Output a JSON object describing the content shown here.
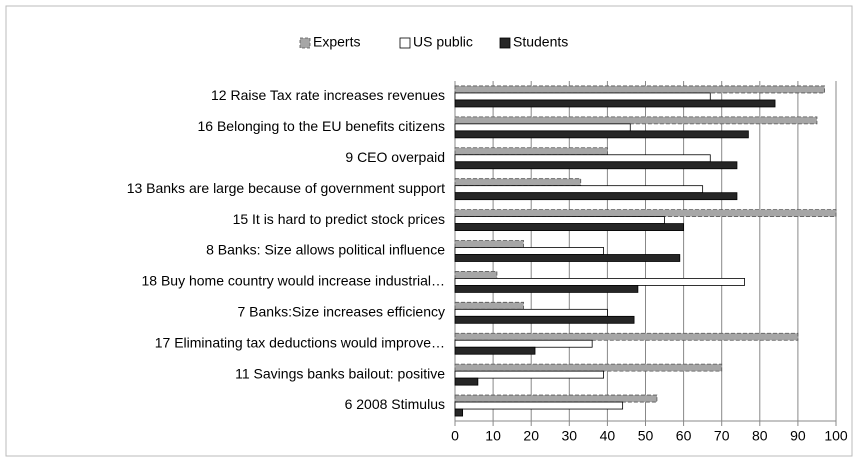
{
  "chart_data": {
    "type": "hbar",
    "categories": [
      "12 Raise Tax rate increases revenues",
      "16 Belonging to the EU benefits citizens",
      "9 CEO overpaid",
      "13 Banks are large because of government support",
      "15 It is hard to predict stock prices",
      "8 Banks: Size allows political influence",
      "18 Buy home country would increase industrial…",
      "7 Banks:Size increases efficiency",
      "17 Eliminating tax deductions would improve…",
      "11 Savings banks bailout: positive",
      "6 2008 Stimulus"
    ],
    "series": [
      {
        "name": "Experts",
        "color": "#a6a6a6",
        "values": [
          97,
          95,
          40,
          33,
          100,
          18,
          11,
          18,
          90,
          70,
          53
        ]
      },
      {
        "name": "US public",
        "color": "#ffffff",
        "values": [
          67,
          46,
          67,
          65,
          55,
          39,
          76,
          40,
          36,
          39,
          44
        ]
      },
      {
        "name": "Students",
        "color": "#262626",
        "values": [
          84,
          77,
          74,
          74,
          60,
          59,
          48,
          47,
          21,
          6,
          2
        ]
      }
    ],
    "xlim": [
      0,
      100
    ],
    "xticks": [
      0,
      10,
      20,
      30,
      40,
      50,
      60,
      70,
      80,
      90,
      100
    ],
    "grid": true,
    "legend": "top"
  }
}
